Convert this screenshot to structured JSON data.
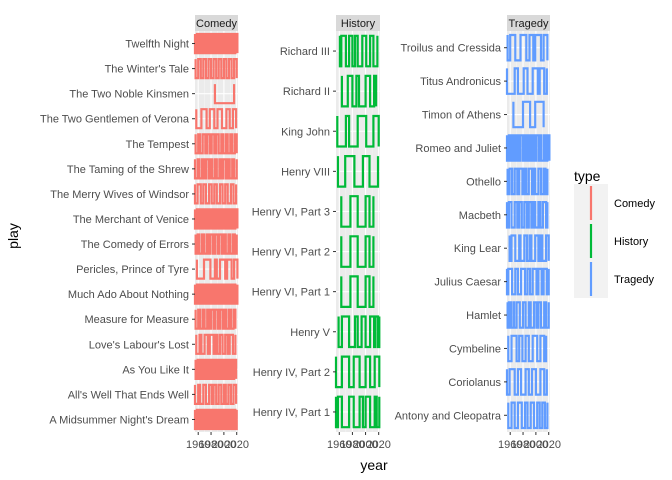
{
  "chart_data": {
    "type": "line",
    "title": "",
    "xlabel": "year",
    "ylabel": "play",
    "xlim": [
      1955,
      2022
    ],
    "x_ticks": [
      1960,
      1980,
      2000,
      2020
    ],
    "x_tick_labels": [
      "1960",
      "1980",
      "2000",
      "2020"
    ],
    "grid": true,
    "legend": {
      "title": "type",
      "position": "right",
      "entries": [
        "Comedy",
        "History",
        "Tragedy"
      ]
    },
    "colors": {
      "Comedy": "#F8766D",
      "History": "#00BA38",
      "Tragedy": "#619CFF"
    },
    "facets": [
      {
        "name": "Comedy",
        "plays": [
          "A Midsummer Night's Dream",
          "All's Well That Ends Well",
          "As You Like It",
          "Love's Labour's Lost",
          "Measure for Measure",
          "Much Ado About Nothing",
          "Pericles, Prince of Tyre",
          "The Comedy of Errors",
          "The Merchant of Venice",
          "The Merry Wives of Windsor",
          "The Taming of the Shrew",
          "The Tempest",
          "The Two Gentlemen of Verona",
          "The Two Noble Kinsmen",
          "The Winter's Tale",
          "Twelfth Night"
        ],
        "years": [
          [
            1955,
            1958,
            1960,
            1961,
            1963,
            1966,
            1968,
            1971,
            1973,
            1975,
            1978,
            1980,
            1983,
            1985,
            1988,
            1990,
            1993,
            1995,
            1998,
            2000,
            2002,
            2005,
            2008,
            2010,
            2013,
            2015,
            2018,
            2020
          ],
          [
            1955,
            1960,
            1963,
            1968,
            1972,
            1977,
            1981,
            1984,
            1988,
            1992,
            1996,
            2000,
            2003,
            2007,
            2011,
            2015,
            2019
          ],
          [
            1956,
            1959,
            1962,
            1965,
            1968,
            1971,
            1973,
            1976,
            1979,
            1982,
            1985,
            1987,
            1990,
            1993,
            1996,
            1999,
            2002,
            2005,
            2008,
            2010,
            2013,
            2016,
            2019
          ],
          [
            1957,
            1962,
            1965,
            1970,
            1975,
            1978,
            1984,
            1987,
            1990,
            1994,
            1998,
            2002,
            2006,
            2009,
            2014,
            2018
          ],
          [
            1956,
            1960,
            1963,
            1967,
            1970,
            1974,
            1977,
            1980,
            1984,
            1987,
            1991,
            1994,
            1998,
            2001,
            2004,
            2008,
            2011,
            2015,
            2018
          ],
          [
            1955,
            1958,
            1961,
            1964,
            1967,
            1970,
            1972,
            1975,
            1978,
            1981,
            1984,
            1986,
            1989,
            1992,
            1995,
            1998,
            2001,
            2004,
            2006,
            2009,
            2012,
            2015,
            2018,
            2021
          ],
          [
            1958,
            1969,
            1979,
            1986,
            1989,
            1994,
            2002,
            2005,
            2012,
            2016,
            2021
          ],
          [
            1956,
            1959,
            1962,
            1966,
            1969,
            1973,
            1976,
            1979,
            1983,
            1986,
            1990,
            1993,
            1997,
            2000,
            2003,
            2007,
            2010,
            2014,
            2017,
            2020
          ],
          [
            1955,
            1958,
            1961,
            1964,
            1967,
            1970,
            1973,
            1976,
            1979,
            1982,
            1985,
            1988,
            1991,
            1994,
            1997,
            2000,
            2003,
            2006,
            2009,
            2012,
            2015,
            2018,
            2021
          ],
          [
            1955,
            1959,
            1964,
            1968,
            1972,
            1977,
            1981,
            1985,
            1989,
            1994,
            1998,
            2002,
            2006,
            2011,
            2015,
            2019
          ],
          [
            1955,
            1959,
            1962,
            1966,
            1969,
            1972,
            1976,
            1979,
            1982,
            1986,
            1989,
            1993,
            1996,
            1999,
            2003,
            2006,
            2009,
            2013,
            2016,
            2020
          ],
          [
            1956,
            1960,
            1963,
            1967,
            1971,
            1974,
            1978,
            1981,
            1985,
            1988,
            1992,
            1996,
            1999,
            2003,
            2006,
            2010,
            2013,
            2017,
            2020
          ],
          [
            1957,
            1965,
            1973,
            1978,
            1985,
            1990,
            1997,
            2004,
            2009,
            2014,
            2019
          ],
          [
            1986,
            2016
          ],
          [
            1956,
            1960,
            1964,
            1968,
            1972,
            1976,
            1980,
            1984,
            1988,
            1992,
            1996,
            2000,
            2004,
            2008,
            2012,
            2016,
            2020
          ],
          [
            1955,
            1958,
            1961,
            1964,
            1967,
            1970,
            1973,
            1976,
            1979,
            1982,
            1985,
            1988,
            1991,
            1994,
            1997,
            2000,
            2003,
            2006,
            2009,
            2012,
            2015,
            2018,
            2021
          ]
        ]
      },
      {
        "name": "History",
        "plays": [
          "Henry IV, Part 1",
          "Henry IV, Part 2",
          "Henry V",
          "Henry VI, Part 1",
          "Henry VI, Part 2",
          "Henry VI, Part 3",
          "Henry VIII",
          "King John",
          "Richard II",
          "Richard III"
        ],
        "years": [
          [
            1955,
            1958,
            1964,
            1975,
            1982,
            1991,
            1996,
            2000,
            2007,
            2014,
            2017,
            2021
          ],
          [
            1955,
            1964,
            1975,
            1982,
            1991,
            2000,
            2007,
            2014,
            2021
          ],
          [
            1959,
            1964,
            1975,
            1984,
            1988,
            1994,
            2000,
            2007,
            2013,
            2015,
            2019,
            2021
          ],
          [
            1963,
            1977,
            1988,
            2000,
            2006,
            2012
          ],
          [
            1963,
            1977,
            1988,
            2000,
            2006,
            2012
          ],
          [
            1963,
            1977,
            1988,
            2000,
            2006,
            2012
          ],
          [
            1958,
            1969,
            1983,
            1996,
            2006,
            2019
          ],
          [
            1957,
            1970,
            1975,
            1988,
            2001,
            2012,
            2020
          ],
          [
            1964,
            1973,
            1980,
            1986,
            1990,
            2000,
            2007,
            2013,
            2016
          ],
          [
            1961,
            1963,
            1970,
            1975,
            1980,
            1984,
            1988,
            1995,
            2001,
            2007,
            2012,
            2018
          ]
        ]
      },
      {
        "name": "Tragedy",
        "plays": [
          "Antony and Cleopatra",
          "Coriolanus",
          "Cymbeline",
          "Hamlet",
          "Julius Caesar",
          "King Lear",
          "Macbeth",
          "Othello",
          "Romeo and Juliet",
          "Timon of Athens",
          "Titus Andronicus",
          "Troilus and Cressida"
        ],
        "years": [
          [
            1957,
            1962,
            1967,
            1972,
            1978,
            1983,
            1987,
            1992,
            1997,
            2002,
            2006,
            2010,
            2014,
            2018
          ],
          [
            1955,
            1959,
            1967,
            1972,
            1977,
            1984,
            1989,
            1994,
            2000,
            2007,
            2013,
            2017
          ],
          [
            1957,
            1962,
            1970,
            1974,
            1979,
            1984,
            1989,
            1995,
            2002,
            2007,
            2013,
            2016
          ],
          [
            1956,
            1958,
            1961,
            1965,
            1966,
            1970,
            1975,
            1980,
            1984,
            1989,
            1992,
            1997,
            2001,
            2004,
            2008,
            2013,
            2016,
            2020
          ],
          [
            1955,
            1957,
            1963,
            1968,
            1972,
            1977,
            1983,
            1987,
            1991,
            1995,
            2001,
            2004,
            2009,
            2012,
            2017,
            2020
          ],
          [
            1959,
            1962,
            1968,
            1974,
            1976,
            1982,
            1986,
            1990,
            1993,
            1999,
            2004,
            2007,
            2010,
            2016,
            2020
          ],
          [
            1955,
            1958,
            1962,
            1967,
            1971,
            1974,
            1978,
            1982,
            1986,
            1989,
            1993,
            1996,
            1999,
            2004,
            2007,
            2011,
            2016,
            2018
          ],
          [
            1956,
            1959,
            1963,
            1967,
            1971,
            1974,
            1979,
            1982,
            1985,
            1989,
            1994,
            1997,
            1999,
            2004,
            2008,
            2012,
            2015,
            2018
          ],
          [
            1955,
            1958,
            1961,
            1964,
            1967,
            1970,
            1973,
            1976,
            1980,
            1983,
            1986,
            1989,
            1992,
            1995,
            1998,
            2000,
            2004,
            2006,
            2008,
            2012,
            2015,
            2018,
            2021
          ],
          [
            1965,
            1980,
            1991,
            1999,
            2012
          ],
          [
            1955,
            1967,
            1972,
            1981,
            1987,
            1995,
            2003,
            2006,
            2013,
            2017
          ],
          [
            1956,
            1960,
            1968,
            1976,
            1985,
            1990,
            1996,
            1999,
            2008,
            2012,
            2018
          ]
        ]
      }
    ]
  }
}
